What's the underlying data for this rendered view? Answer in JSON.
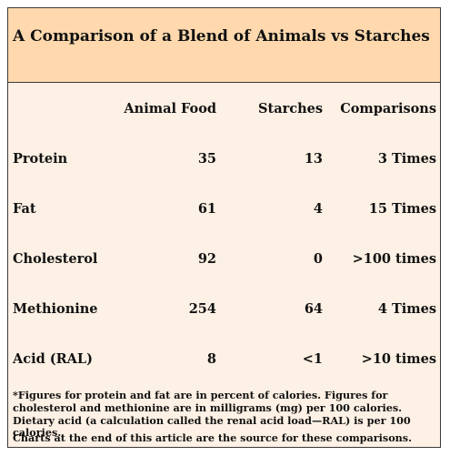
{
  "title": "A Comparison of a Blend of Animals vs Starches",
  "columns": {
    "animal": "Animal Food",
    "starches": "Starches",
    "comparisons": "Comparisons"
  },
  "rows": [
    {
      "label": "Protein",
      "animal": "35",
      "starches": "13",
      "comparison": "3 Times"
    },
    {
      "label": "Fat",
      "animal": "61",
      "starches": "4",
      "comparison": "15 Times"
    },
    {
      "label": "Cholesterol",
      "animal": "92",
      "starches": "0",
      "comparison": ">100 times"
    },
    {
      "label": "Methionine",
      "animal": "254",
      "starches": "64",
      "comparison": "4 Times"
    },
    {
      "label": "Acid (RAL)",
      "animal": "8",
      "starches": "<1",
      "comparison": ">10 times"
    }
  ],
  "footnote": "*Figures for protein and fat are in percent of calories. Figures for cholesterol and methionine are in milligrams (mg) per 100 calories. Dietary acid (a calculation called the renal acid load—RAL) is per 100 calories.",
  "source_note": "Charts at the end of this article are the source for these comparisons."
}
